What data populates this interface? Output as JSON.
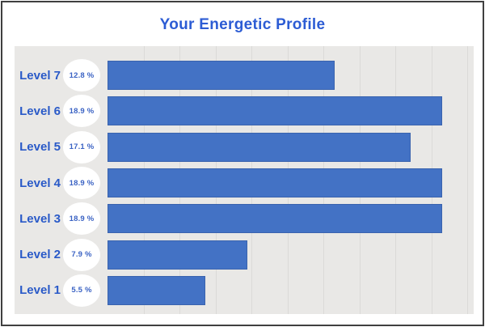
{
  "page": {
    "title": "Your Energetic Profile"
  },
  "chart_data": {
    "type": "bar",
    "orientation": "horizontal",
    "title": "Your Energetic Profile",
    "categories": [
      "Level 7",
      "Level 6",
      "Level 5",
      "Level 4",
      "Level 3",
      "Level 2",
      "Level 1"
    ],
    "values": [
      12.8,
      18.9,
      17.1,
      18.9,
      18.9,
      7.9,
      5.5
    ],
    "value_labels": [
      "12.8 %",
      "18.9 %",
      "17.1 %",
      "18.9 %",
      "18.9 %",
      "7.9 %",
      "5.5 %"
    ],
    "xlabel": "",
    "ylabel": "",
    "xlim": [
      0,
      20.3
    ],
    "gridline_count": 10,
    "legend": "none",
    "grid": "vertical-faint",
    "colors": {
      "title_text": "#2c5cd4",
      "category_text": "#2a5ac8",
      "value_text": "#3b63c4",
      "bar_fill": "#4372c5",
      "bar_border": "#3a63ae",
      "panel_bg": "#e9e8e6",
      "gridline": "#dbdad8",
      "badge_bg": "#ffffff",
      "frame_border": "#3f3f3f",
      "page_bg": "#ffffff"
    }
  }
}
